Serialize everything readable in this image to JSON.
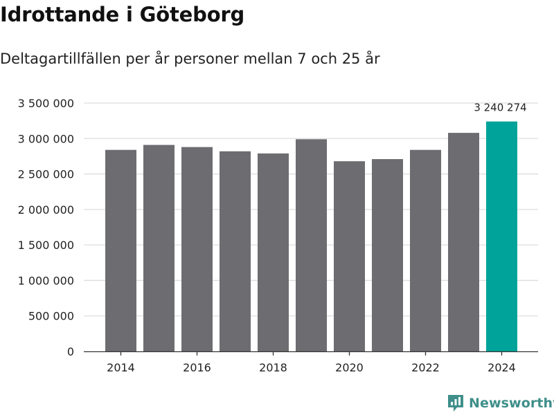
{
  "title": "Idrottande i Göteborg",
  "subtitle": "Deltagartillfällen per år personer mellan 7 och 25 år",
  "chart_data": {
    "type": "bar",
    "title": "Idrottande i Göteborg",
    "subtitle": "Deltagartillfällen per år personer mellan 7 och 25 år",
    "xlabel": "",
    "ylabel": "",
    "categories": [
      "2014",
      "2015",
      "2016",
      "2017",
      "2018",
      "2019",
      "2020",
      "2021",
      "2022",
      "2023",
      "2024"
    ],
    "values": [
      2840000,
      2910000,
      2880000,
      2820000,
      2790000,
      2990000,
      2680000,
      2710000,
      2840000,
      3080000,
      3240274
    ],
    "highlight_index": 10,
    "highlight_label": "3 240 274",
    "ylim": [
      0,
      3500000
    ],
    "yticks": [
      0,
      500000,
      1000000,
      1500000,
      2000000,
      2500000,
      3000000,
      3500000
    ],
    "ytick_labels": [
      "0",
      "500 000",
      "1 000 000",
      "1 500 000",
      "2 000 000",
      "2 500 000",
      "3 000 000",
      "3 500 000"
    ],
    "xtick_labels": [
      "2014",
      "2016",
      "2018",
      "2020",
      "2022",
      "2024"
    ],
    "grid": true,
    "colors": {
      "bar": "#6d6c71",
      "highlight": "#00a39a",
      "grid": "#dddddd",
      "axis": "#333333"
    }
  },
  "brand": {
    "name": "Newsworthy",
    "icon": "newsworthy-logo-icon",
    "color": "#3f8f8a"
  }
}
